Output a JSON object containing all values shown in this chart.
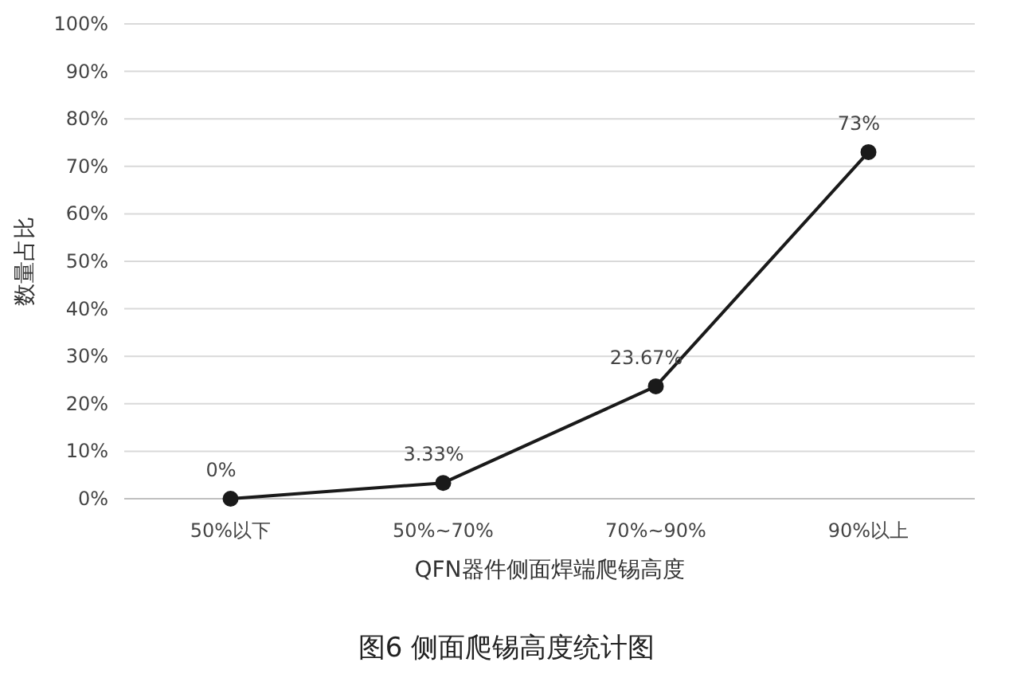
{
  "chart_data": {
    "type": "line",
    "title": "图6 侧面爬锡高度统计图",
    "xlabel": "QFN器件侧面焊端爬锡高度",
    "ylabel": "数量占比",
    "categories": [
      "50%以下",
      "50%~70%",
      "70%~90%",
      "90%以上"
    ],
    "series": [
      {
        "color": "#1a1a1a",
        "values": [
          0,
          3.33,
          23.67,
          73
        ],
        "value_labels": [
          "0%",
          "3.33%",
          "23.67%",
          "73%"
        ]
      }
    ],
    "ylim": [
      0,
      100
    ],
    "yticks": [
      {
        "value": 0,
        "label": "0%"
      },
      {
        "value": 10,
        "label": "10%"
      },
      {
        "value": 20,
        "label": "20%"
      },
      {
        "value": 30,
        "label": "30%"
      },
      {
        "value": 40,
        "label": "40%"
      },
      {
        "value": 50,
        "label": "50%"
      },
      {
        "value": 60,
        "label": "60%"
      },
      {
        "value": 70,
        "label": "70%"
      },
      {
        "value": 80,
        "label": "80%"
      },
      {
        "value": 90,
        "label": "90%"
      },
      {
        "value": 100,
        "label": "100%"
      }
    ],
    "grid": "y",
    "marker": "circle",
    "line_style": "solid"
  }
}
